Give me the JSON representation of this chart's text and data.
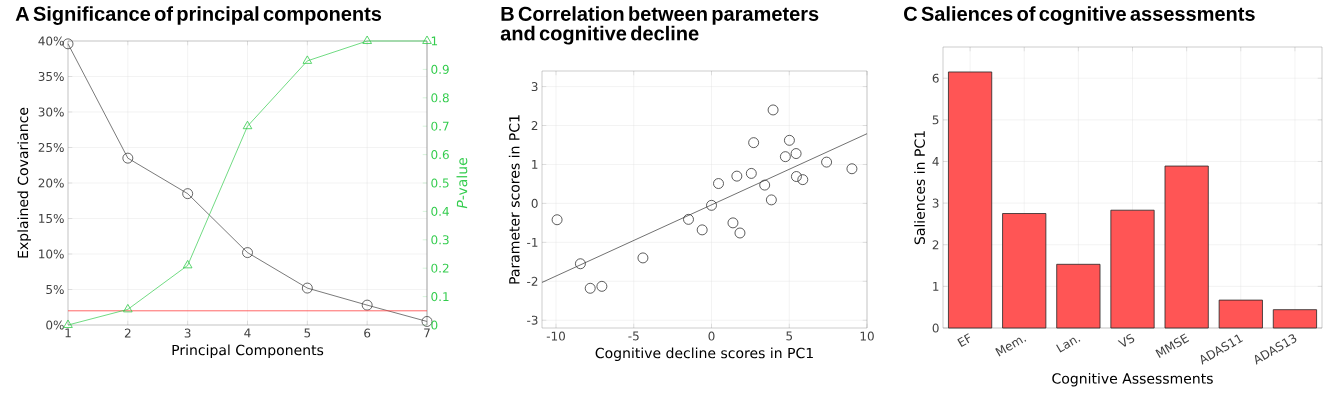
{
  "chart_data": [
    {
      "type": "line",
      "title": "A  Significance of principal components",
      "xlabel": "Principal Components",
      "ylabel": "Explained Covariance",
      "y2label": "*P*-value",
      "x": [
        1,
        2,
        3,
        4,
        5,
        6,
        7
      ],
      "series": [
        {
          "color": "#404040",
          "marker": "circle",
          "values": [
            39.6,
            23.5,
            18.5,
            10.2,
            5.2,
            2.8,
            0.5
          ]
        },
        {
          "color": "#33cc4d",
          "marker": "triangle",
          "axis": "y2",
          "values": [
            0.0,
            0.055,
            0.21,
            0.7,
            0.93,
            1.0,
            1.0
          ]
        }
      ],
      "xlim": [
        1,
        7
      ],
      "xticks": [
        1,
        2,
        3,
        4,
        5,
        6,
        7
      ],
      "ylim": [
        0,
        40
      ],
      "yticks": [
        {
          "value": 0,
          "label": "0%"
        },
        {
          "value": 5,
          "label": "5%"
        },
        {
          "value": 10,
          "label": "10%"
        },
        {
          "value": 15,
          "label": "15%"
        },
        {
          "value": 20,
          "label": "20%"
        },
        {
          "value": 25,
          "label": "25%"
        },
        {
          "value": 30,
          "label": "30%"
        },
        {
          "value": 35,
          "label": "35%"
        },
        {
          "value": 40,
          "label": "40%"
        }
      ],
      "y2lim": [
        0,
        1
      ],
      "y2ticks": [
        0,
        0.1,
        0.2,
        0.3,
        0.4,
        0.5,
        0.6,
        0.7,
        0.8,
        0.9,
        1
      ],
      "ref_lines": [
        {
          "axis": "y2",
          "value": 0.05,
          "color": "#ff4040"
        }
      ],
      "grid": true
    },
    {
      "type": "scatter",
      "title": "B  Correlation between parameters and cognitive decline",
      "xlabel": "Cognitive decline scores in PC1",
      "ylabel": "Parameter scores in PC1",
      "series": [
        {
          "color": "#333333",
          "marker": "circle",
          "x": [
            -9.93,
            -8.43,
            -7.8,
            -7.05,
            -4.41,
            -1.48,
            -0.6,
            0.0,
            0.45,
            1.38,
            1.63,
            1.83,
            2.56,
            2.71,
            3.42,
            3.85,
            3.96,
            4.75,
            5.01,
            5.44,
            5.46,
            5.87,
            7.4,
            9.03
          ],
          "values": [
            -0.42,
            -1.55,
            -2.18,
            -2.13,
            -1.4,
            -0.41,
            -0.68,
            -0.05,
            0.51,
            -0.5,
            0.7,
            -0.76,
            0.77,
            1.56,
            0.47,
            0.09,
            2.4,
            1.2,
            1.62,
            1.28,
            0.69,
            0.61,
            1.06,
            0.89
          ]
        },
        {
          "type": "line",
          "color": "#333333",
          "marker": "none",
          "x": [
            -10.9,
            10
          ],
          "values": [
            -2.03,
            1.79
          ]
        }
      ],
      "xlim": [
        -10.9,
        10
      ],
      "xticks": [
        -10,
        -5,
        0,
        5,
        10
      ],
      "ylim": [
        -3.2,
        3.4
      ],
      "yticks": [
        -3,
        -2,
        -1,
        0,
        1,
        2,
        3
      ],
      "grid": true
    },
    {
      "type": "bar",
      "title": "C  Saliences of cognitive assessments",
      "xlabel": "Cognitive Assessments",
      "ylabel": "Saliences in PC1",
      "categories": [
        "EF",
        "Mem.",
        "Lan.",
        "VS",
        "MMSE",
        "ADAS11",
        "ADAS13"
      ],
      "values": [
        6.15,
        2.75,
        1.53,
        2.83,
        3.89,
        0.67,
        0.44
      ],
      "color": "#ff5555",
      "ylim": [
        0,
        6.75
      ],
      "yticks": [
        0,
        1,
        2,
        3,
        4,
        5,
        6
      ],
      "grid": true
    }
  ]
}
